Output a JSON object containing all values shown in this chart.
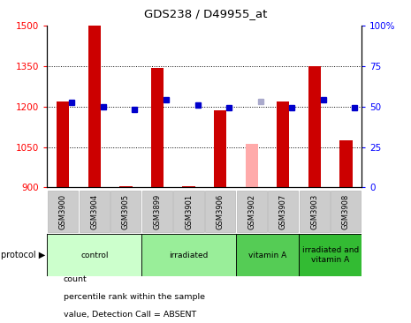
{
  "title": "GDS238 / D49955_at",
  "samples": [
    "GSM3900",
    "GSM3904",
    "GSM3905",
    "GSM3899",
    "GSM3901",
    "GSM3906",
    "GSM3902",
    "GSM3907",
    "GSM3903",
    "GSM3908"
  ],
  "count_values": [
    1220,
    1500,
    905,
    1345,
    905,
    1185,
    null,
    1220,
    1350,
    1075
  ],
  "count_absent": [
    null,
    null,
    null,
    null,
    null,
    null,
    1063,
    null,
    null,
    null
  ],
  "rank_values": [
    1215,
    1200,
    1190,
    1225,
    1205,
    1197,
    null,
    1197,
    1225,
    1195
  ],
  "rank_absent": [
    null,
    null,
    null,
    null,
    null,
    null,
    1218,
    null,
    null,
    null
  ],
  "y_min": 900,
  "y_max": 1500,
  "y_ticks": [
    900,
    1050,
    1200,
    1350,
    1500
  ],
  "y2_ticks": [
    0,
    25,
    50,
    75,
    100
  ],
  "y2_labels": [
    "0",
    "25",
    "50",
    "75",
    "100%"
  ],
  "red_color": "#cc0000",
  "pink_color": "#ffaaaa",
  "blue_color": "#0000cc",
  "lightblue_color": "#aaaacc",
  "groups": [
    {
      "label": "control",
      "start": 0,
      "end": 2,
      "color": "#ccffcc"
    },
    {
      "label": "irradiated",
      "start": 3,
      "end": 5,
      "color": "#99ee99"
    },
    {
      "label": "vitamin A",
      "start": 6,
      "end": 7,
      "color": "#55cc55"
    },
    {
      "label": "irradiated and\nvitamin A",
      "start": 8,
      "end": 9,
      "color": "#33bb33"
    }
  ]
}
